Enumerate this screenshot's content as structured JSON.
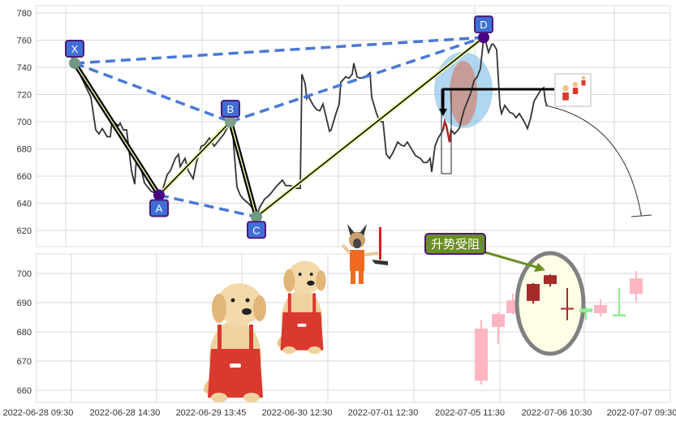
{
  "chart_data": [
    {
      "type": "line",
      "panel": "price",
      "ylim": [
        610,
        785
      ],
      "yticks": [
        780,
        760,
        740,
        720,
        700,
        680,
        660,
        640,
        620
      ],
      "grid": true,
      "line_color": "#333333",
      "series": [
        {
          "values": [
            [
              1,
              756
            ],
            [
              6,
              743
            ],
            [
              16,
              718
            ],
            [
              19,
              694
            ],
            [
              21,
              691
            ],
            [
              23,
              695
            ],
            [
              26,
              689
            ],
            [
              28,
              689
            ],
            [
              29,
              701
            ],
            [
              33,
              697
            ],
            [
              34,
              699
            ],
            [
              36,
              694
            ],
            [
              38,
              694
            ],
            [
              41,
              664
            ],
            [
              43,
              654
            ],
            [
              44,
              673
            ],
            [
              46,
              670
            ],
            [
              49,
              655
            ],
            [
              53,
              649
            ],
            [
              58,
              646
            ],
            [
              60,
              649
            ],
            [
              63,
              661
            ],
            [
              65,
              664
            ],
            [
              68,
              673
            ],
            [
              70,
              676
            ],
            [
              71,
              667
            ],
            [
              74,
              673
            ],
            [
              76,
              664
            ],
            [
              79,
              658
            ],
            [
              81,
              670
            ],
            [
              84,
              682
            ],
            [
              86,
              683
            ],
            [
              89,
              688
            ],
            [
              92,
              682
            ],
            [
              94,
              685
            ],
            [
              98,
              691
            ],
            [
              102,
              700
            ],
            [
              103,
              700
            ],
            [
              104,
              682
            ],
            [
              106,
              652
            ],
            [
              108,
              646
            ],
            [
              110,
              643
            ],
            [
              113,
              640
            ],
            [
              116,
              636
            ],
            [
              118,
              630
            ],
            [
              120,
              637
            ],
            [
              123,
              643
            ],
            [
              126,
              646
            ],
            [
              130,
              652
            ],
            [
              134,
              657
            ],
            [
              136,
              653
            ],
            [
              139,
              653
            ],
            [
              142,
              651
            ],
            [
              145,
              651
            ],
            [
              146,
              735
            ],
            [
              148,
              728
            ],
            [
              149,
              717
            ],
            [
              150,
              719
            ],
            [
              153,
              712
            ],
            [
              155,
              709
            ],
            [
              157,
              708
            ],
            [
              159,
              713
            ],
            [
              161,
              703
            ],
            [
              163,
              693
            ],
            [
              164,
              694
            ],
            [
              167,
              706
            ],
            [
              169,
              713
            ],
            [
              170,
              729
            ],
            [
              173,
              733
            ],
            [
              175,
              732
            ],
            [
              177,
              735
            ],
            [
              178,
              743
            ],
            [
              180,
              733
            ],
            [
              182,
              732
            ],
            [
              185,
              733
            ],
            [
              188,
              736
            ],
            [
              189,
              718
            ],
            [
              192,
              706
            ],
            [
              194,
              700
            ],
            [
              196,
              700
            ],
            [
              198,
              676
            ],
            [
              200,
              673
            ],
            [
              202,
              677
            ],
            [
              205,
              685
            ],
            [
              207,
              683
            ],
            [
              209,
              682
            ],
            [
              211,
              685
            ],
            [
              214,
              679
            ],
            [
              216,
              675
            ],
            [
              219,
              673
            ],
            [
              221,
              670
            ],
            [
              223,
              670
            ],
            [
              225,
              673
            ],
            [
              226,
              663
            ],
            [
              228,
              682
            ],
            [
              230,
              688
            ],
            [
              233,
              694
            ],
            [
              234,
              700
            ],
            [
              235,
              697
            ],
            [
              237,
              685
            ],
            [
              238,
              694
            ],
            [
              240,
              691
            ],
            [
              243,
              695
            ],
            [
              244,
              700
            ],
            [
              246,
              709
            ],
            [
              248,
              715
            ],
            [
              250,
              721
            ],
            [
              252,
              730
            ],
            [
              254,
              733
            ],
            [
              256,
              739
            ],
            [
              258,
              762
            ],
            [
              259,
              760
            ],
            [
              261,
              751
            ],
            [
              263,
              757
            ],
            [
              264,
              757
            ],
            [
              266,
              753
            ],
            [
              268,
              712
            ],
            [
              269,
              706
            ],
            [
              271,
              712
            ],
            [
              274,
              707
            ],
            [
              276,
              706
            ],
            [
              278,
              703
            ],
            [
              280,
              706
            ],
            [
              283,
              700
            ],
            [
              285,
              695
            ],
            [
              287,
              703
            ],
            [
              289,
              715
            ],
            [
              291,
              719
            ],
            [
              293,
              723
            ],
            [
              295,
              725
            ],
            [
              296,
              715
            ],
            [
              297,
              712
            ]
          ]
        },
        {
          "highlight_color": "#a52a2a",
          "values": [
            [
              233,
              694
            ],
            [
              234,
              700
            ],
            [
              235,
              697
            ],
            [
              237,
              685
            ],
            [
              238,
              694
            ]
          ]
        }
      ],
      "pattern": {
        "points": [
          {
            "label": "X",
            "x": 6,
            "y": 743
          },
          {
            "label": "A",
            "x": 58,
            "y": 646
          },
          {
            "label": "B",
            "x": 102,
            "y": 700
          },
          {
            "label": "C",
            "x": 118,
            "y": 630
          },
          {
            "label": "D",
            "x": 258,
            "y": 762
          }
        ],
        "dashed_color": "#4a78d8",
        "label_bg": "#3f6fd6",
        "label_border": "#4b1a7a"
      }
    },
    {
      "type": "candlestick",
      "panel": "candles",
      "ylim": [
        656,
        707
      ],
      "yticks": [
        700,
        690,
        680,
        670,
        660
      ],
      "grid": true,
      "candles": [
        {
          "open": 663.3,
          "close": 681.1,
          "high": 684,
          "low": 662,
          "color": "#ffb6c1"
        },
        {
          "open": 681.7,
          "close": 686.1,
          "high": 686.7,
          "low": 676,
          "color": "#ffb6c1"
        },
        {
          "open": 686.4,
          "close": 690.8,
          "high": 693,
          "low": 686,
          "color": "#ffb6c1"
        },
        {
          "open": 696.4,
          "close": 690.6,
          "high": 696.7,
          "low": 689.7,
          "color": "#a52a2a"
        },
        {
          "open": 699.4,
          "close": 696.4,
          "high": 699.7,
          "low": 695.5,
          "color": "#a52a2a"
        },
        {
          "open": 688.2,
          "close": 687.8,
          "high": 695,
          "low": 684,
          "color": "#a52a2a"
        },
        {
          "open": 686.7,
          "close": 688,
          "high": 688.6,
          "low": 684,
          "color": "#90ee90"
        },
        {
          "open": 686.4,
          "close": 689.2,
          "high": 691.1,
          "low": 685.3,
          "color": "#ffb6c1"
        },
        {
          "open": 685.3,
          "close": 686,
          "high": 695,
          "low": 685.3,
          "color": "#90ee90"
        },
        {
          "open": 693,
          "close": 698.3,
          "high": 700.8,
          "low": 690.3,
          "color": "#ffb6c1"
        }
      ],
      "annotation": {
        "text": "升势受阻",
        "bg": "#6b8e23",
        "ellipse_fill": "#fffde6",
        "ellipse_stroke": "#808080"
      }
    }
  ],
  "x_axis": {
    "labels": [
      "2022-06-28 09:30",
      "2022-06-28 14:30",
      "2022-06-29 13:45",
      "2022-06-30 12:30",
      "2022-07-01 12:30",
      "2022-07-05 11:30",
      "2022-07-06 10:30",
      "2022-07-07 09:30"
    ]
  },
  "decorations": [
    "dog-in-overalls-icon",
    "dog-in-overalls-icon",
    "shepherd-dog-with-hammer-icon",
    "dogs-thumbnail-icon"
  ]
}
